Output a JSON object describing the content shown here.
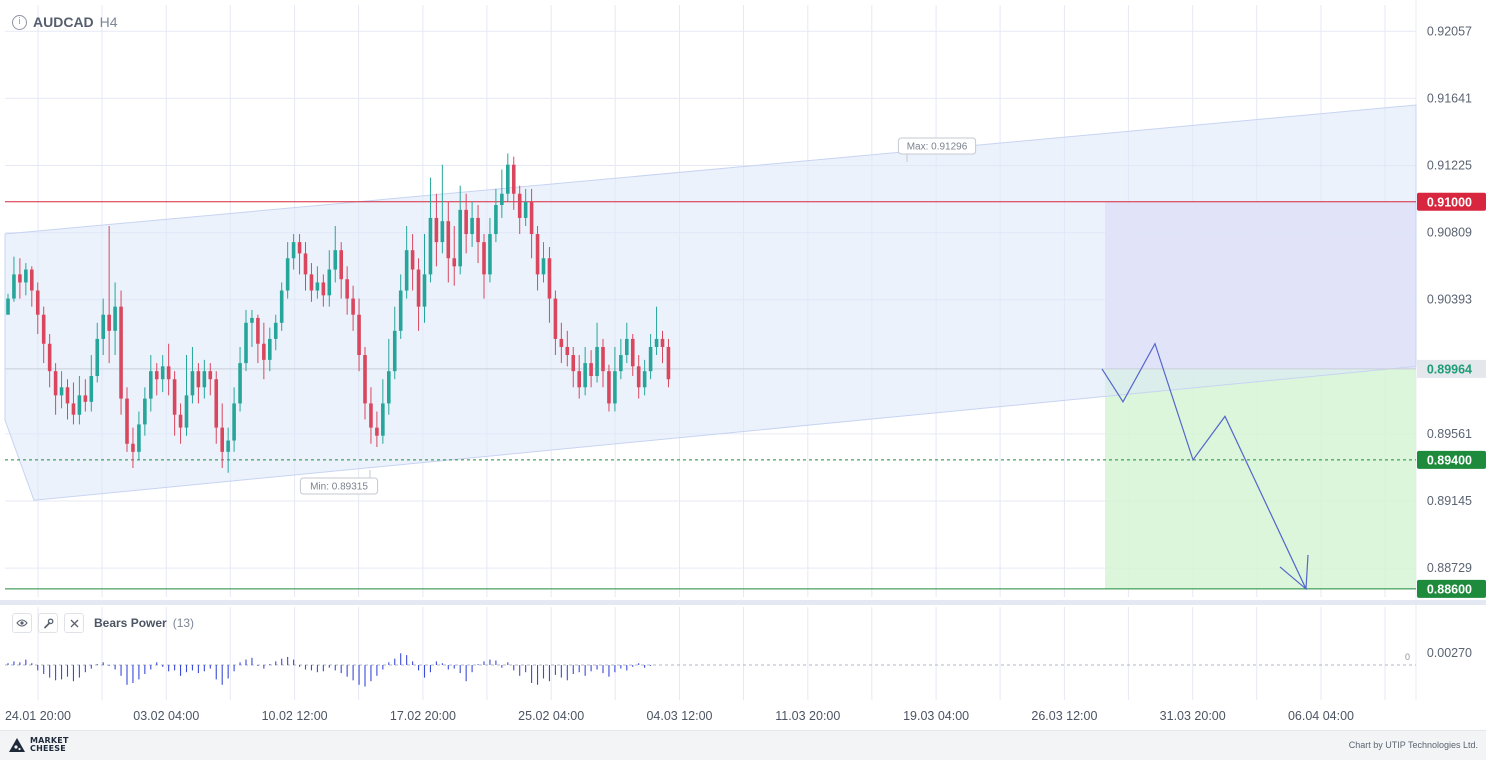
{
  "header": {
    "info_icon": "i",
    "symbol": "AUDCAD",
    "timeframe": "H4"
  },
  "chart_data": {
    "type": "candlestick",
    "symbol": "AUDCAD",
    "timeframe": "H4",
    "ylim": [
      0.8855,
      0.9222
    ],
    "y_ticks": [
      "0.92057",
      "0.91641",
      "0.91225",
      "0.90809",
      "0.90393",
      "0.89561",
      "0.89145",
      "0.88729"
    ],
    "x_ticks": [
      "24.01 20:00",
      "03.02 04:00",
      "10.02 12:00",
      "17.02 20:00",
      "25.02 04:00",
      "04.03 12:00",
      "11.03 20:00",
      "19.03 04:00",
      "26.03 12:00",
      "31.03 20:00",
      "06.04 04:00"
    ],
    "current_price": "0.89964",
    "max_label": "Max: 0.91296",
    "min_label": "Min: 0.89315",
    "levels": [
      {
        "label": "0.91000",
        "value": 0.91,
        "color": "#d7263d",
        "style": "solid"
      },
      {
        "label": "0.89400",
        "value": 0.894,
        "color": "#1e8a3c",
        "style": "dashed"
      },
      {
        "label": "0.88600",
        "value": 0.886,
        "color": "#1e8a3c",
        "style": "solid"
      }
    ],
    "channel": {
      "upper": [
        0.908,
        0.916
      ],
      "lower": [
        0.8915,
        0.8998
      ],
      "note": "ascending channel, values at left and right edges"
    },
    "zones": [
      {
        "name": "risk",
        "from": 0.89964,
        "to": 0.91,
        "color": "#e2dcf6"
      },
      {
        "name": "target",
        "from": 0.886,
        "to": 0.89964,
        "color": "#d5f5d5"
      }
    ],
    "forecast_path": [
      0.89964,
      0.8976,
      0.9012,
      0.894,
      0.8967,
      0.886
    ],
    "candles": [
      [
        0.903,
        0.904,
        0.9032,
        0.9043
      ],
      [
        0.904,
        0.9055,
        0.9038,
        0.9066
      ],
      [
        0.9055,
        0.905,
        0.904,
        0.9065
      ],
      [
        0.905,
        0.9058,
        0.9042,
        0.9062
      ],
      [
        0.9058,
        0.9045,
        0.9035,
        0.906
      ],
      [
        0.9045,
        0.903,
        0.9018,
        0.905
      ],
      [
        0.903,
        0.9012,
        0.9,
        0.9035
      ],
      [
        0.9012,
        0.8995,
        0.8985,
        0.9018
      ],
      [
        0.8995,
        0.898,
        0.8968,
        0.9
      ],
      [
        0.898,
        0.8985,
        0.8972,
        0.8995
      ],
      [
        0.8985,
        0.8975,
        0.8965,
        0.899
      ],
      [
        0.8975,
        0.8968,
        0.8962,
        0.8988
      ],
      [
        0.8968,
        0.898,
        0.8962,
        0.8992
      ],
      [
        0.898,
        0.8976,
        0.897,
        0.899
      ],
      [
        0.8976,
        0.8992,
        0.897,
        0.9005
      ],
      [
        0.8992,
        0.9015,
        0.8988,
        0.9025
      ],
      [
        0.9015,
        0.903,
        0.9005,
        0.904
      ],
      [
        0.903,
        0.902,
        0.9,
        0.9085
      ],
      [
        0.902,
        0.9035,
        0.9005,
        0.905
      ],
      [
        0.9035,
        0.8978,
        0.8968,
        0.9045
      ],
      [
        0.8978,
        0.895,
        0.8945,
        0.8985
      ],
      [
        0.895,
        0.8945,
        0.8935,
        0.896
      ],
      [
        0.8945,
        0.8962,
        0.894,
        0.897
      ],
      [
        0.8962,
        0.8978,
        0.8955,
        0.8985
      ],
      [
        0.8978,
        0.8995,
        0.897,
        0.9005
      ],
      [
        0.8995,
        0.899,
        0.898,
        0.9
      ],
      [
        0.899,
        0.8998,
        0.8982,
        0.9005
      ],
      [
        0.8998,
        0.899,
        0.898,
        0.9012
      ],
      [
        0.899,
        0.8968,
        0.8955,
        0.8995
      ],
      [
        0.8968,
        0.896,
        0.895,
        0.8975
      ],
      [
        0.896,
        0.898,
        0.8955,
        0.9005
      ],
      [
        0.898,
        0.8995,
        0.8975,
        0.901
      ],
      [
        0.8995,
        0.8985,
        0.8975,
        0.9
      ],
      [
        0.8985,
        0.8995,
        0.8978,
        0.9002
      ],
      [
        0.8995,
        0.899,
        0.898,
        0.9
      ],
      [
        0.899,
        0.896,
        0.895,
        0.8995
      ],
      [
        0.896,
        0.8945,
        0.8935,
        0.8975
      ],
      [
        0.8945,
        0.8952,
        0.8932,
        0.896
      ],
      [
        0.8952,
        0.8975,
        0.8945,
        0.8985
      ],
      [
        0.8975,
        0.9,
        0.897,
        0.901
      ],
      [
        0.9,
        0.9025,
        0.8995,
        0.9033
      ],
      [
        0.9025,
        0.9028,
        0.901,
        0.9033
      ],
      [
        0.9028,
        0.9012,
        0.9,
        0.903
      ],
      [
        0.9012,
        0.9002,
        0.899,
        0.9025
      ],
      [
        0.9002,
        0.9015,
        0.8995,
        0.9022
      ],
      [
        0.9015,
        0.9025,
        0.9008,
        0.903
      ],
      [
        0.9025,
        0.9045,
        0.902,
        0.905
      ],
      [
        0.9045,
        0.9065,
        0.904,
        0.9075
      ],
      [
        0.9065,
        0.9075,
        0.9058,
        0.908
      ],
      [
        0.9075,
        0.9068,
        0.9055,
        0.908
      ],
      [
        0.9068,
        0.9055,
        0.9045,
        0.9075
      ],
      [
        0.9055,
        0.9045,
        0.9038,
        0.9062
      ],
      [
        0.9045,
        0.905,
        0.904,
        0.906
      ],
      [
        0.905,
        0.9042,
        0.9035,
        0.9055
      ],
      [
        0.9042,
        0.9058,
        0.9035,
        0.907
      ],
      [
        0.9058,
        0.907,
        0.905,
        0.9085
      ],
      [
        0.907,
        0.9052,
        0.904,
        0.9075
      ],
      [
        0.9052,
        0.904,
        0.903,
        0.906
      ],
      [
        0.904,
        0.903,
        0.902,
        0.9048
      ],
      [
        0.903,
        0.9005,
        0.8995,
        0.904
      ],
      [
        0.9005,
        0.8975,
        0.8965,
        0.901
      ],
      [
        0.8975,
        0.896,
        0.895,
        0.8985
      ],
      [
        0.896,
        0.8955,
        0.8948,
        0.897
      ],
      [
        0.8955,
        0.8975,
        0.895,
        0.899
      ],
      [
        0.8975,
        0.8995,
        0.8968,
        0.9015
      ],
      [
        0.8995,
        0.902,
        0.899,
        0.9035
      ],
      [
        0.902,
        0.9045,
        0.9015,
        0.9055
      ],
      [
        0.9045,
        0.907,
        0.904,
        0.9085
      ],
      [
        0.907,
        0.9058,
        0.9045,
        0.908
      ],
      [
        0.9058,
        0.9035,
        0.902,
        0.9065
      ],
      [
        0.9035,
        0.9055,
        0.9025,
        0.908
      ],
      [
        0.9055,
        0.909,
        0.905,
        0.9115
      ],
      [
        0.909,
        0.9075,
        0.906,
        0.9105
      ],
      [
        0.9075,
        0.9088,
        0.9068,
        0.9123
      ],
      [
        0.9088,
        0.9065,
        0.905,
        0.91
      ],
      [
        0.9065,
        0.906,
        0.9048,
        0.9085
      ],
      [
        0.906,
        0.9095,
        0.9055,
        0.911
      ],
      [
        0.9095,
        0.908,
        0.9068,
        0.9105
      ],
      [
        0.908,
        0.909,
        0.9072,
        0.91
      ],
      [
        0.909,
        0.9075,
        0.9062,
        0.9098
      ],
      [
        0.9075,
        0.9055,
        0.904,
        0.908
      ],
      [
        0.9055,
        0.908,
        0.905,
        0.909
      ],
      [
        0.908,
        0.9098,
        0.9075,
        0.9108
      ],
      [
        0.9098,
        0.9105,
        0.909,
        0.912
      ],
      [
        0.9105,
        0.9123,
        0.91,
        0.913
      ],
      [
        0.9123,
        0.9105,
        0.9095,
        0.9128
      ],
      [
        0.9105,
        0.909,
        0.908,
        0.911
      ],
      [
        0.909,
        0.91,
        0.9085,
        0.9108
      ],
      [
        0.91,
        0.908,
        0.9065,
        0.9108
      ],
      [
        0.908,
        0.9055,
        0.9045,
        0.9085
      ],
      [
        0.9055,
        0.9065,
        0.905,
        0.9075
      ],
      [
        0.9065,
        0.904,
        0.9025,
        0.9072
      ],
      [
        0.904,
        0.9015,
        0.9005,
        0.9045
      ],
      [
        0.9015,
        0.901,
        0.9,
        0.9025
      ],
      [
        0.901,
        0.9005,
        0.8998,
        0.902
      ],
      [
        0.9005,
        0.8995,
        0.8985,
        0.901
      ],
      [
        0.8995,
        0.8985,
        0.8978,
        0.9005
      ],
      [
        0.8985,
        0.9,
        0.898,
        0.901
      ],
      [
        0.9,
        0.8992,
        0.8985,
        0.9008
      ],
      [
        0.8992,
        0.901,
        0.8988,
        0.9025
      ],
      [
        0.901,
        0.8995,
        0.8985,
        0.9015
      ],
      [
        0.8995,
        0.8975,
        0.897,
        0.8999
      ],
      [
        0.8975,
        0.8995,
        0.897,
        0.901
      ],
      [
        0.8995,
        0.9005,
        0.899,
        0.9015
      ],
      [
        0.9005,
        0.9015,
        0.9,
        0.9025
      ],
      [
        0.9015,
        0.8998,
        0.8992,
        0.9018
      ],
      [
        0.8998,
        0.8985,
        0.8978,
        0.9005
      ],
      [
        0.8985,
        0.8995,
        0.898,
        0.9002
      ],
      [
        0.8995,
        0.901,
        0.899,
        0.9018
      ],
      [
        0.901,
        0.9015,
        0.9005,
        0.9035
      ],
      [
        0.9015,
        0.901,
        0.9,
        0.902
      ],
      [
        0.901,
        0.899,
        0.8985,
        0.9015
      ]
    ]
  },
  "indicator": {
    "name": "Bears Power",
    "param": "(13)",
    "eye_icon": "eye-icon",
    "settings_icon": "wrench-icon",
    "close_icon": "close-icon",
    "y_tick": "0.00270",
    "zero_label": "0",
    "bars": [
      0.0002,
      0.0004,
      0.0003,
      0.0006,
      0.0002,
      -0.0006,
      -0.001,
      -0.0014,
      -0.0017,
      -0.0016,
      -0.0013,
      -0.0018,
      -0.0014,
      -0.0008,
      -0.0004,
      0.0001,
      0.0003,
      -0.0001,
      -0.0005,
      -0.0012,
      -0.0022,
      -0.002,
      -0.0016,
      -0.001,
      -0.0005,
      0.0003,
      -0.0002,
      -0.0007,
      -0.0006,
      -0.0012,
      -0.0008,
      -0.0006,
      -0.0009,
      -0.0007,
      -0.0004,
      -0.0016,
      -0.0022,
      -0.0015,
      -0.0007,
      0.0003,
      0.0006,
      0.0008,
      -0.0001,
      -0.0004,
      0.0001,
      0.0004,
      0.0007,
      0.0009,
      0.0006,
      -0.0002,
      -0.0005,
      -0.0006,
      -0.0008,
      -0.0007,
      -0.0003,
      -0.0006,
      -0.0009,
      -0.0013,
      -0.0017,
      -0.0022,
      -0.0024,
      -0.0018,
      -0.0012,
      -0.0005,
      0.0003,
      0.0007,
      0.0013,
      0.0011,
      0.0004,
      -0.0006,
      -0.0014,
      -0.0008,
      0.0004,
      0.0002,
      -0.0005,
      -0.0004,
      -0.0009,
      -0.0018,
      -0.0008,
      0.0001,
      0.0004,
      0.0006,
      0.0005,
      -0.0003,
      0.0003,
      -0.0006,
      -0.0012,
      -0.0008,
      -0.002,
      -0.0022,
      -0.0015,
      -0.0018,
      -0.0011,
      -0.0014,
      -0.0017,
      -0.001,
      -0.0008,
      -0.0012,
      -0.0007,
      -0.0005,
      -0.0009,
      -0.0013,
      -0.0008,
      -0.0004,
      -0.0006,
      -0.0002,
      0.0002,
      -0.0003,
      -0.0001
    ]
  },
  "footer": {
    "logo_line1": "MARKET",
    "logo_line2": "CHEESE",
    "credit": "Chart by UTIP Technologies Ltd."
  },
  "colors": {
    "bull": "#26a69a",
    "bear": "#d9475e",
    "grid": "#e6e9f5",
    "channel": "#dde7fa",
    "forecast": "#5566cc",
    "indicator": "#3a4ad9"
  }
}
